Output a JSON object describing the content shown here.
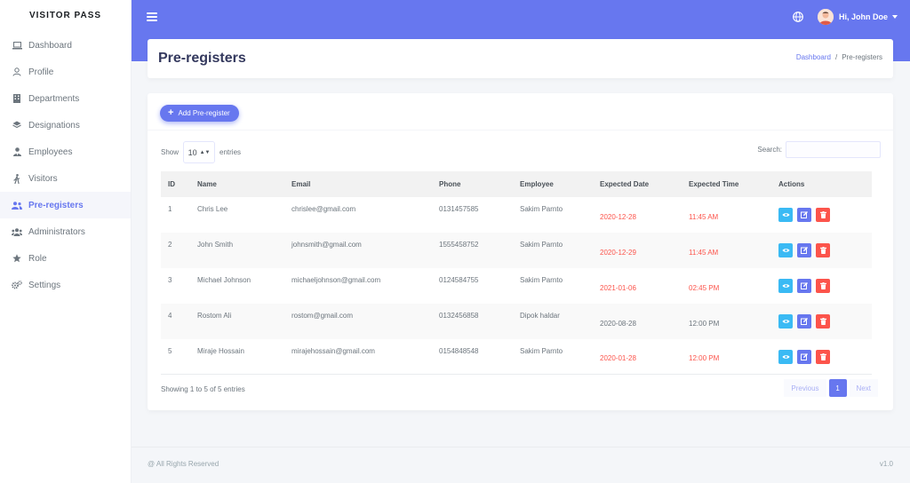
{
  "brand": "VISITOR PASS",
  "sidebar": {
    "items": [
      {
        "label": "Dashboard",
        "icon": "laptop-icon",
        "active": false
      },
      {
        "label": "Profile",
        "icon": "user-icon",
        "active": false
      },
      {
        "label": "Departments",
        "icon": "building-icon",
        "active": false
      },
      {
        "label": "Designations",
        "icon": "layers-icon",
        "active": false
      },
      {
        "label": "Employees",
        "icon": "user-tie-icon",
        "active": false
      },
      {
        "label": "Visitors",
        "icon": "walking-icon",
        "active": false
      },
      {
        "label": "Pre-registers",
        "icon": "user-friends-icon",
        "active": true
      },
      {
        "label": "Administrators",
        "icon": "users-icon",
        "active": false
      },
      {
        "label": "Role",
        "icon": "star-icon",
        "active": false
      },
      {
        "label": "Settings",
        "icon": "cogs-icon",
        "active": false
      }
    ]
  },
  "navbar": {
    "user_greeting": "Hi, John Doe",
    "accent_color": "#6777ef"
  },
  "header": {
    "title": "Pre-registers",
    "breadcrumb": {
      "home": "Dashboard",
      "separator": "/",
      "current": "Pre-registers"
    }
  },
  "card": {
    "add_button_label": "Add Pre-register",
    "show_label": "Show",
    "entries_value": "10",
    "entries_label": "entries",
    "search_label": "Search:",
    "columns": [
      "ID",
      "Name",
      "Email",
      "Phone",
      "Employee",
      "Expected Date",
      "Expected Time",
      "Actions"
    ],
    "rows": [
      {
        "id": "1",
        "name": "Chris Lee",
        "email": "chrislee@gmail.com",
        "phone": "0131457585",
        "employee": "Sakim Parnto",
        "date": "2020-12-28",
        "time": "11:45 AM",
        "highlight": true
      },
      {
        "id": "2",
        "name": "John Smith",
        "email": "johnsmith@gmail.com",
        "phone": "1555458752",
        "employee": "Sakim Parnto",
        "date": "2020-12-29",
        "time": "11:45 AM",
        "highlight": true
      },
      {
        "id": "3",
        "name": "Michael Johnson",
        "email": "michaeljohnson@gmail.com",
        "phone": "0124584755",
        "employee": "Sakim Parnto",
        "date": "2021-01-06",
        "time": "02:45 PM",
        "highlight": true
      },
      {
        "id": "4",
        "name": "Rostom Ali",
        "email": "rostom@gmail.com",
        "phone": "0132456858",
        "employee": "Dipok haldar",
        "date": "2020-08-28",
        "time": "12:00 PM",
        "highlight": false
      },
      {
        "id": "5",
        "name": "Miraje Hossain",
        "email": "mirajehossain@gmail.com",
        "phone": "0154848548",
        "employee": "Sakim Parnto",
        "date": "2020-01-28",
        "time": "12:00 PM",
        "highlight": true
      }
    ],
    "info": "Showing 1 to 5 of 5 entries",
    "pagination": {
      "previous": "Previous",
      "current": "1",
      "next": "Next"
    }
  },
  "footer": {
    "copyright": "@ All Rights Reserved",
    "version": "v1.0"
  }
}
